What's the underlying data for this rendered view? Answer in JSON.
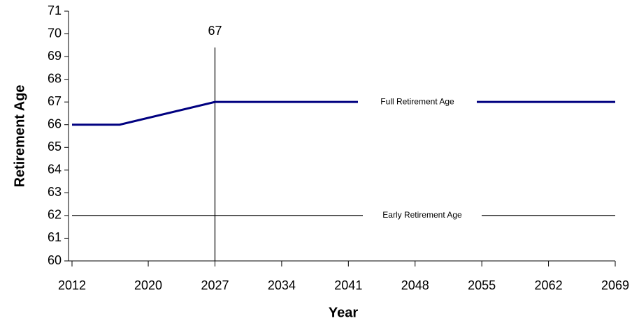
{
  "chart_data": {
    "type": "line",
    "x_label": "Year",
    "y_label": "Retirement Age",
    "x": [
      2012,
      2017,
      2027,
      2069
    ],
    "series": [
      {
        "name": "Full Retirement Age",
        "color": "#000080",
        "values": [
          66,
          66,
          67,
          67
        ]
      },
      {
        "name": "Early Retirement Age",
        "color": "#000000",
        "values": [
          62,
          62,
          62,
          62
        ]
      }
    ],
    "annotation": {
      "x": 2027,
      "label": "67"
    },
    "xlim": [
      2012,
      2069
    ],
    "xticks": [
      2012,
      2020,
      2027,
      2034,
      2041,
      2048,
      2055,
      2062,
      2069
    ],
    "ylim": [
      60,
      71
    ],
    "yticks": [
      60,
      61,
      62,
      63,
      64,
      65,
      66,
      67,
      68,
      69,
      70,
      71
    ]
  }
}
